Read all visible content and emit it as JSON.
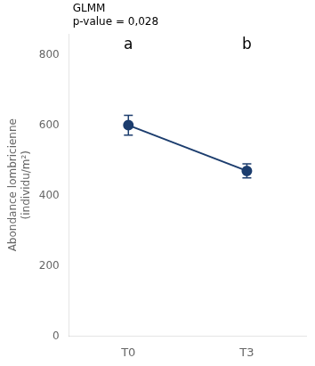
{
  "chart_data": {
    "type": "line",
    "categories": [
      "T0",
      "T3"
    ],
    "values": [
      600,
      470
    ],
    "errors": [
      28,
      20
    ],
    "point_labels": [
      "a",
      "b"
    ],
    "color": "#1c3d6e",
    "marker": "circle",
    "ylabel": "Abondance lombricienne\n(individu/m²)",
    "annotations": [
      "GLMM",
      "p-value = 0,028"
    ],
    "ylim": [
      0,
      860
    ],
    "yticks": [
      0,
      200,
      400,
      600,
      800
    ],
    "grid": false
  }
}
